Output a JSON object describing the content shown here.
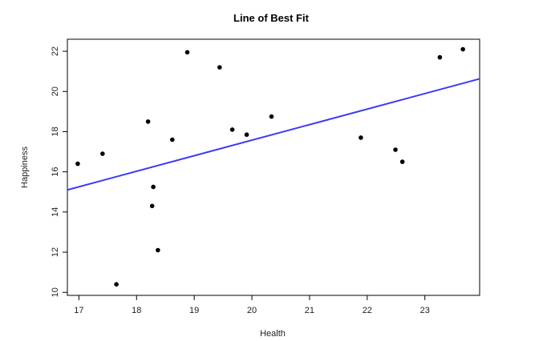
{
  "chart_data": {
    "type": "scatter",
    "title": "Line of Best Fit",
    "xlabel": "Health",
    "ylabel": "Happiness",
    "xlim": [
      16.8,
      23.95
    ],
    "ylim": [
      9.85,
      22.6
    ],
    "xticks": [
      17,
      18,
      19,
      20,
      21,
      22,
      23
    ],
    "yticks": [
      10,
      12,
      14,
      16,
      18,
      20,
      22
    ],
    "grid": false,
    "legend": "none",
    "points": [
      {
        "x": 16.98,
        "y": 16.4
      },
      {
        "x": 17.41,
        "y": 16.9
      },
      {
        "x": 17.65,
        "y": 10.4
      },
      {
        "x": 18.2,
        "y": 18.5
      },
      {
        "x": 18.27,
        "y": 14.3
      },
      {
        "x": 18.29,
        "y": 15.25
      },
      {
        "x": 18.37,
        "y": 12.1
      },
      {
        "x": 18.62,
        "y": 17.6
      },
      {
        "x": 18.88,
        "y": 21.95
      },
      {
        "x": 19.44,
        "y": 21.2
      },
      {
        "x": 19.66,
        "y": 18.1
      },
      {
        "x": 19.91,
        "y": 17.85
      },
      {
        "x": 20.34,
        "y": 18.75
      },
      {
        "x": 21.89,
        "y": 17.7
      },
      {
        "x": 22.49,
        "y": 17.1
      },
      {
        "x": 22.61,
        "y": 16.5
      },
      {
        "x": 23.26,
        "y": 21.7
      },
      {
        "x": 23.66,
        "y": 22.1
      }
    ],
    "fit_line": {
      "x": [
        16.8,
        23.95
      ],
      "y": [
        15.1,
        20.63
      ]
    },
    "colors": {
      "points": "#000000",
      "fit_line": "#3b3bf5",
      "frame": "#000000"
    }
  }
}
